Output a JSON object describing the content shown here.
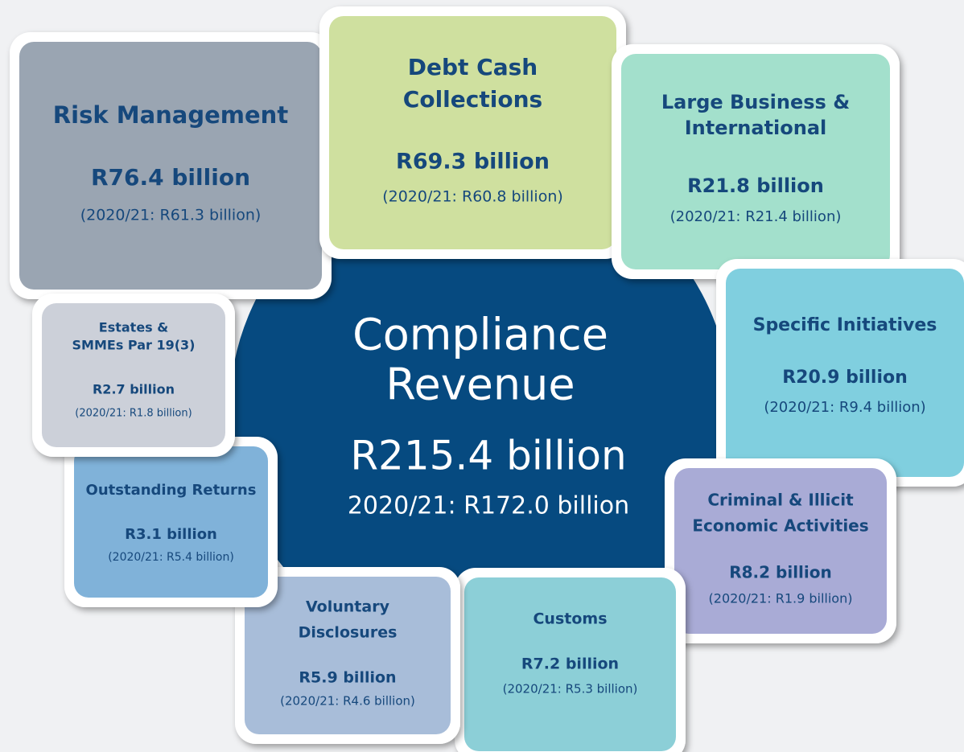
{
  "center": {
    "title": [
      "Compliance",
      "Revenue"
    ],
    "value": "R215.4 billion",
    "prior": "2020/21: R172.0 billion"
  },
  "boxes": [
    {
      "title": [
        "Risk Management"
      ],
      "value": "R76.4 billion",
      "prior": "(2020/21: R61.3 billion)"
    },
    {
      "title": [
        "Debt Cash",
        "Collections"
      ],
      "value": "R69.3 billion",
      "prior": "(2020/21: R60.8 billion)"
    },
    {
      "title": [
        "Large Business &",
        "International"
      ],
      "value": "R21.8 billion",
      "prior": "(2020/21: R21.4 billion)"
    },
    {
      "title": [
        "Specific Initiatives"
      ],
      "value": "R20.9 billion",
      "prior": "(2020/21: R9.4 billion)"
    },
    {
      "title": [
        "Criminal & Illicit",
        "Economic Activities"
      ],
      "value": "R8.2 billion",
      "prior": "(2020/21: R1.9 billion)"
    },
    {
      "title": [
        "Customs"
      ],
      "value": "R7.2 billion",
      "prior": "(2020/21: R5.3 billion)"
    },
    {
      "title": [
        "Voluntary",
        "Disclosures"
      ],
      "value": "R5.9 billion",
      "prior": "(2020/21: R4.6 billion)"
    },
    {
      "title": [
        "Outstanding Returns"
      ],
      "value": "R3.1 billion",
      "prior": "(2020/21: R5.4 billion)"
    },
    {
      "title": [
        "Estates &",
        "SMMEs Par 19(3)"
      ],
      "value": "R2.7 billion",
      "prior": "(2020/21: R1.8 billion)"
    }
  ]
}
